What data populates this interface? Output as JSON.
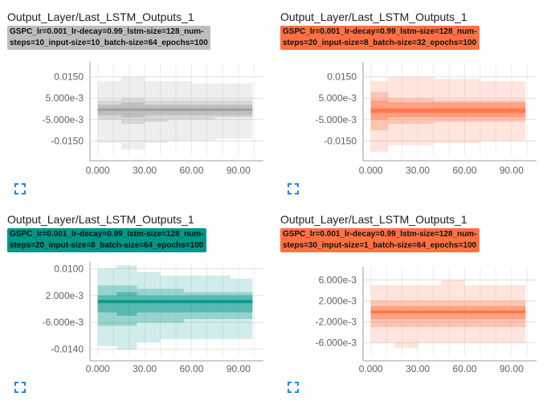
{
  "cards": [
    {
      "title": "Output_Layer/Last_LSTM_Outputs_1",
      "run_line1": "GSPC_lr=0.001_lr-decay=0.99_lstm-size=128_num-",
      "run_line2": "steps=10_input-size=10_batch-size=64_epochs=100",
      "run_color": "#bdbdbd",
      "series_color": "#9e9e9e",
      "expand_icon": "fullscreen-icon"
    },
    {
      "title": "Output_Layer/Last_LSTM_Outputs_1",
      "run_line1": "GSPC_lr=0.001_lr-decay=0.99_lstm-size=128_num-",
      "run_line2": "steps=20_input-size=8_batch-size=32_epochs=100",
      "run_color": "#ff7043",
      "series_color": "#ff7043",
      "expand_icon": "fullscreen-icon"
    },
    {
      "title": "Output_Layer/Last_LSTM_Outputs_1",
      "run_line1": "GSPC_lr=0.001_lr-decay=0.99_lstm-size=128_num-",
      "run_line2": "steps=20_input-size=8_batch-size=64_epochs=100",
      "run_color": "#009688",
      "series_color": "#009688",
      "expand_icon": "fullscreen-icon"
    },
    {
      "title": "Output_Layer/Last_LSTM_Outputs_1",
      "run_line1": "GSPC_lr=0.001_lr-decay=0.99_lstm-size=128_num-",
      "run_line2": "steps=30_input-size=1_batch-size=64_epochs=100",
      "run_color": "#ff7043",
      "series_color": "#ff7043",
      "expand_icon": "fullscreen-icon"
    }
  ],
  "chart_data": [
    {
      "type": "area",
      "title": "Output_Layer/Last_LSTM_Outputs_1",
      "x_ticks": [
        "0.000",
        "30.00",
        "60.00",
        "90.00"
      ],
      "y_ticks": [
        "0.0150",
        "5.000e-3",
        "-5.000e-3",
        "-0.0150"
      ],
      "y_tick_values": [
        0.015,
        0.005,
        -0.005,
        -0.015
      ],
      "xlim": [
        -5,
        106
      ],
      "ylim": [
        -0.022,
        0.022
      ],
      "x": [
        0,
        15,
        30,
        45,
        60,
        75,
        90,
        99
      ],
      "bands": [
        {
          "lo": [
            -0.016,
            -0.019,
            -0.016,
            -0.015,
            -0.015,
            -0.014,
            -0.014,
            -0.014
          ],
          "hi": [
            0.013,
            0.015,
            0.013,
            0.013,
            0.012,
            0.012,
            0.012,
            0.012
          ]
        },
        {
          "lo": [
            -0.005,
            -0.007,
            -0.006,
            -0.005,
            -0.005,
            -0.004,
            -0.004,
            -0.004
          ],
          "hi": [
            0.004,
            0.005,
            0.004,
            0.004,
            0.004,
            0.004,
            0.004,
            0.004
          ]
        },
        {
          "lo": [
            -0.003,
            -0.004,
            -0.003,
            -0.003,
            -0.003,
            -0.003,
            -0.003,
            -0.003
          ],
          "hi": [
            0.002,
            0.003,
            0.002,
            0.002,
            0.002,
            0.002,
            0.002,
            0.002
          ]
        },
        {
          "lo": [
            -0.001,
            -0.001,
            -0.001,
            -0.001,
            -0.001,
            -0.001,
            -0.001,
            -0.001
          ],
          "hi": [
            0.0003,
            0.0003,
            0.0003,
            0.0003,
            0.0003,
            0.0003,
            0.0003,
            0.0003
          ]
        }
      ]
    },
    {
      "type": "area",
      "title": "Output_Layer/Last_LSTM_Outputs_1",
      "x_ticks": [
        "0.000",
        "30.00",
        "60.00",
        "90.00"
      ],
      "y_ticks": [
        "0.0150",
        "5.000e-3",
        "-5.000e-3",
        "-0.0150"
      ],
      "y_tick_values": [
        0.015,
        0.005,
        -0.005,
        -0.015
      ],
      "xlim": [
        -5,
        106
      ],
      "ylim": [
        -0.022,
        0.022
      ],
      "x": [
        0,
        10,
        11,
        25,
        40,
        55,
        70,
        85,
        99
      ],
      "bands": [
        {
          "lo": [
            -0.02,
            -0.02,
            -0.017,
            -0.017,
            -0.016,
            -0.016,
            -0.015,
            -0.015,
            -0.015
          ],
          "hi": [
            0.013,
            0.013,
            0.015,
            0.015,
            0.014,
            0.014,
            0.013,
            0.013,
            0.013
          ]
        },
        {
          "lo": [
            -0.01,
            -0.01,
            -0.007,
            -0.007,
            -0.006,
            -0.006,
            -0.006,
            -0.006,
            -0.006
          ],
          "hi": [
            0.008,
            0.008,
            0.005,
            0.005,
            0.004,
            0.004,
            0.004,
            0.004,
            0.004
          ]
        },
        {
          "lo": [
            -0.005,
            -0.005,
            -0.004,
            -0.004,
            -0.004,
            -0.004,
            -0.004,
            -0.004,
            -0.004
          ],
          "hi": [
            0.004,
            0.004,
            0.003,
            0.003,
            0.003,
            0.003,
            0.003,
            0.003,
            0.003
          ]
        },
        {
          "lo": [
            -0.002,
            -0.002,
            -0.002,
            -0.002,
            -0.002,
            -0.002,
            -0.002,
            -0.002,
            -0.002
          ],
          "hi": [
            0.0003,
            0.0003,
            0.0003,
            0.0003,
            0.0003,
            0.0003,
            0.0003,
            0.0003,
            0.0003
          ]
        }
      ]
    },
    {
      "type": "area",
      "title": "Output_Layer/Last_LSTM_Outputs_1",
      "x_ticks": [
        "0.000",
        "30.00",
        "60.00",
        "90.00"
      ],
      "y_ticks": [
        "0.0100",
        "2.000e-3",
        "-6.000e-3",
        "-0.0140"
      ],
      "y_tick_values": [
        0.01,
        0.002,
        -0.006,
        -0.014
      ],
      "xlim": [
        -5,
        106
      ],
      "ylim": [
        -0.016,
        0.012
      ],
      "x": [
        0,
        12,
        25,
        40,
        55,
        70,
        85,
        99
      ],
      "bands": [
        {
          "lo": [
            -0.013,
            -0.014,
            -0.012,
            -0.011,
            -0.011,
            -0.011,
            -0.011,
            -0.011
          ],
          "hi": [
            0.01,
            0.011,
            0.009,
            0.008,
            0.008,
            0.008,
            0.007,
            0.007
          ]
        },
        {
          "lo": [
            -0.007,
            -0.007,
            -0.006,
            -0.006,
            -0.005,
            -0.005,
            -0.005,
            -0.005
          ],
          "hi": [
            0.005,
            0.005,
            0.004,
            0.004,
            0.003,
            0.003,
            0.003,
            0.003
          ]
        },
        {
          "lo": [
            -0.003,
            -0.004,
            -0.003,
            -0.003,
            -0.003,
            -0.003,
            -0.003,
            -0.003
          ],
          "hi": [
            0.002,
            0.003,
            0.002,
            0.002,
            0.002,
            0.002,
            0.002,
            0.002
          ]
        },
        {
          "lo": [
            -0.0003,
            -0.0003,
            -0.0003,
            -0.0003,
            -0.0003,
            -0.0003,
            -0.0003,
            -0.0003
          ],
          "hi": [
            0.0007,
            0.0007,
            0.0007,
            0.0007,
            0.0007,
            0.0007,
            0.0007,
            0.0007
          ]
        }
      ]
    },
    {
      "type": "area",
      "title": "Output_Layer/Last_LSTM_Outputs_1",
      "x_ticks": [
        "0.000",
        "30.00",
        "60.00",
        "90.00"
      ],
      "y_ticks": [
        "6.000e-3",
        "2.000e-3",
        "-2.000e-3",
        "-6.000e-3"
      ],
      "y_tick_values": [
        0.006,
        0.002,
        -0.002,
        -0.006
      ],
      "xlim": [
        -5,
        106
      ],
      "ylim": [
        -0.0085,
        0.0085
      ],
      "x": [
        0,
        15,
        30,
        45,
        60,
        75,
        90,
        99
      ],
      "bands": [
        {
          "lo": [
            -0.006,
            -0.007,
            -0.006,
            -0.006,
            -0.006,
            -0.006,
            -0.006,
            -0.006
          ],
          "hi": [
            0.005,
            0.005,
            0.005,
            0.006,
            0.005,
            0.005,
            0.005,
            0.005
          ]
        },
        {
          "lo": [
            -0.003,
            -0.003,
            -0.003,
            -0.003,
            -0.003,
            -0.003,
            -0.003,
            -0.003
          ],
          "hi": [
            0.002,
            0.002,
            0.002,
            0.002,
            0.002,
            0.002,
            0.002,
            0.002
          ]
        },
        {
          "lo": [
            -0.0015,
            -0.0015,
            -0.0015,
            -0.0015,
            -0.0015,
            -0.0015,
            -0.0015,
            -0.0015
          ],
          "hi": [
            0.001,
            0.001,
            0.001,
            0.001,
            0.001,
            0.001,
            0.001,
            0.001
          ]
        },
        {
          "lo": [
            -0.0004,
            -0.0004,
            -0.0004,
            -0.0004,
            -0.0004,
            -0.0004,
            -0.0004,
            -0.0004
          ],
          "hi": [
            0.0002,
            0.0002,
            0.0002,
            0.0002,
            0.0002,
            0.0002,
            0.0002,
            0.0002
          ]
        }
      ]
    }
  ]
}
